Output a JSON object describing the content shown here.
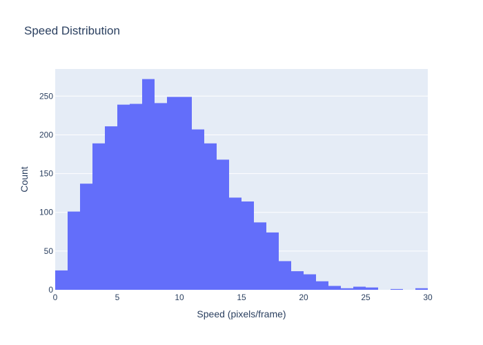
{
  "chart_data": {
    "type": "bar",
    "title": "Speed Distribution",
    "xlabel": "Speed (pixels/frame)",
    "ylabel": "Count",
    "xlim": [
      0,
      30
    ],
    "ylim": [
      0,
      285
    ],
    "x_ticks": [
      0,
      5,
      10,
      15,
      20,
      25,
      30
    ],
    "y_ticks": [
      0,
      50,
      100,
      150,
      200,
      250
    ],
    "bin_width": 1,
    "bin_starts": [
      0,
      1,
      2,
      3,
      4,
      5,
      6,
      7,
      8,
      9,
      10,
      11,
      12,
      13,
      14,
      15,
      16,
      17,
      18,
      19,
      20,
      21,
      22,
      23,
      24,
      25,
      26,
      27,
      28,
      29
    ],
    "values": [
      25,
      101,
      137,
      189,
      211,
      239,
      240,
      272,
      241,
      249,
      249,
      207,
      189,
      168,
      119,
      114,
      87,
      74,
      37,
      24,
      20,
      11,
      5,
      2,
      4,
      3,
      0,
      1,
      0,
      2
    ],
    "grid": true,
    "colors": {
      "bar": "#636efa",
      "plot_bg": "#e5ecf6",
      "grid": "#ffffff",
      "text": "#2a3f5f"
    }
  }
}
